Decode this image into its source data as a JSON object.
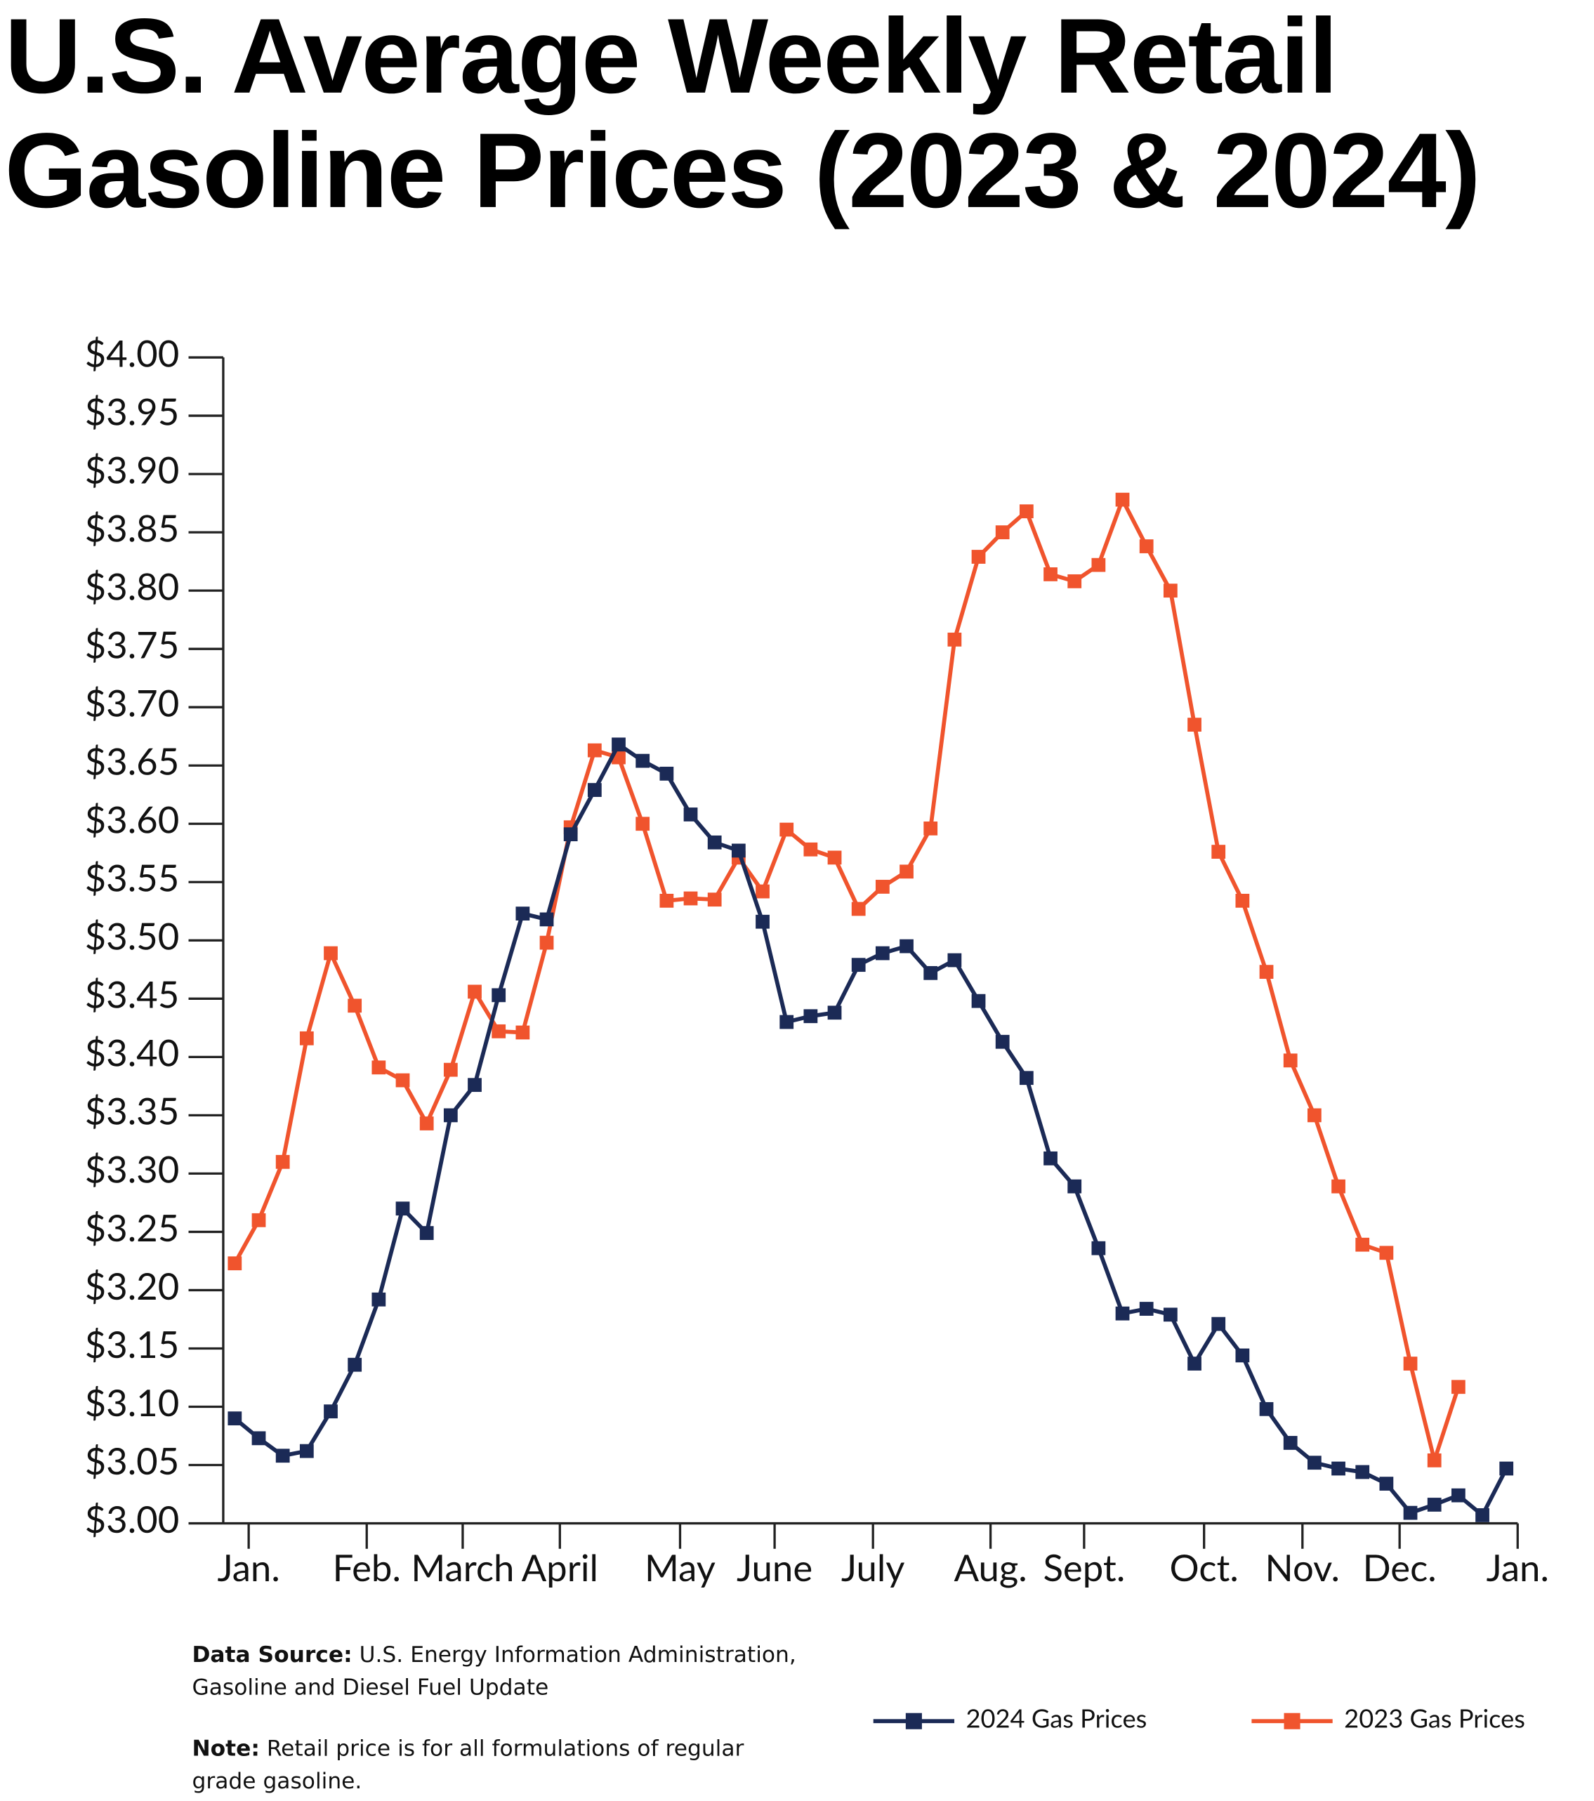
{
  "chart_data": {
    "type": "line",
    "title": "U.S. Average Weekly Retail Gasoline Prices (2023 & 2024)",
    "x": [
      0,
      1,
      2,
      3,
      4,
      5,
      6,
      7,
      8,
      9,
      10,
      11,
      12,
      13,
      14,
      15,
      16,
      17,
      18,
      19,
      20,
      21,
      22,
      23,
      24,
      25,
      26,
      27,
      28,
      29,
      30,
      31,
      32,
      33,
      34,
      35,
      36,
      37,
      38,
      39,
      40,
      41,
      42,
      43,
      44,
      45,
      46,
      47,
      48,
      49,
      50,
      51,
      52,
      53
    ],
    "xlim": [
      -0.48,
      53.47
    ],
    "xticks": [
      {
        "value": 0.58,
        "label": "Jan."
      },
      {
        "value": 5.5,
        "label": "Feb."
      },
      {
        "value": 9.5,
        "label": "March"
      },
      {
        "value": 13.55,
        "label": "April"
      },
      {
        "value": 18.56,
        "label": "May"
      },
      {
        "value": 22.5,
        "label": "June"
      },
      {
        "value": 26.6,
        "label": "July"
      },
      {
        "value": 31.5,
        "label": "Aug."
      },
      {
        "value": 35.4,
        "label": "Sept."
      },
      {
        "value": 40.4,
        "label": "Oct."
      },
      {
        "value": 44.5,
        "label": "Nov."
      },
      {
        "value": 48.55,
        "label": "Dec."
      },
      {
        "value": 53.47,
        "label": "Jan."
      }
    ],
    "ylim": [
      3.0,
      4.0
    ],
    "yticks": [
      {
        "value": 3.0,
        "label": "$3.00"
      },
      {
        "value": 3.05,
        "label": "$3.05"
      },
      {
        "value": 3.1,
        "label": "$3.10"
      },
      {
        "value": 3.15,
        "label": "$3.15"
      },
      {
        "value": 3.2,
        "label": "$3.20"
      },
      {
        "value": 3.25,
        "label": "$3.25"
      },
      {
        "value": 3.3,
        "label": "$3.30"
      },
      {
        "value": 3.35,
        "label": "$3.35"
      },
      {
        "value": 3.4,
        "label": "$3.40"
      },
      {
        "value": 3.45,
        "label": "$3.45"
      },
      {
        "value": 3.5,
        "label": "$3.50"
      },
      {
        "value": 3.55,
        "label": "$3.55"
      },
      {
        "value": 3.6,
        "label": "$3.60"
      },
      {
        "value": 3.65,
        "label": "$3.65"
      },
      {
        "value": 3.7,
        "label": "$3.70"
      },
      {
        "value": 3.75,
        "label": "$3.75"
      },
      {
        "value": 3.8,
        "label": "$3.80"
      },
      {
        "value": 3.85,
        "label": "$3.85"
      },
      {
        "value": 3.9,
        "label": "$3.90"
      },
      {
        "value": 3.95,
        "label": "$3.95"
      },
      {
        "value": 4.0,
        "label": "$4.00"
      }
    ],
    "grid": false,
    "series": [
      {
        "name": "2024 Gas Prices",
        "color": "#1b2a56",
        "values": [
          3.09,
          3.073,
          3.058,
          3.062,
          3.096,
          3.136,
          3.192,
          3.27,
          3.249,
          3.35,
          3.376,
          3.453,
          3.523,
          3.518,
          3.591,
          3.629,
          3.668,
          3.654,
          3.643,
          3.608,
          3.584,
          3.577,
          3.516,
          3.43,
          3.435,
          3.438,
          3.479,
          3.489,
          3.495,
          3.472,
          3.483,
          3.448,
          3.413,
          3.382,
          3.313,
          3.289,
          3.236,
          3.18,
          3.184,
          3.179,
          3.137,
          3.171,
          3.144,
          3.098,
          3.069,
          3.052,
          3.047,
          3.044,
          3.034,
          3.009,
          3.016,
          3.024,
          3.007,
          3.047
        ]
      },
      {
        "name": "2023 Gas Prices",
        "color": "#f0542d",
        "values": [
          3.223,
          3.26,
          3.31,
          3.416,
          3.489,
          3.444,
          3.391,
          3.38,
          3.343,
          3.389,
          3.456,
          3.422,
          3.421,
          3.498,
          3.597,
          3.663,
          3.657,
          3.6,
          3.534,
          3.536,
          3.535,
          3.571,
          3.542,
          3.595,
          3.578,
          3.571,
          3.527,
          3.546,
          3.559,
          3.596,
          3.758,
          3.829,
          3.85,
          3.868,
          3.814,
          3.808,
          3.822,
          3.878,
          3.838,
          3.8,
          3.685,
          3.576,
          3.534,
          3.473,
          3.397,
          3.35,
          3.289,
          3.239,
          3.232,
          3.137,
          3.054,
          3.117,
          null,
          null
        ]
      }
    ],
    "footnotes": {
      "source_label": "Data Source:",
      "source_text": "U.S. Energy Information Administration, Gasoline and Diesel Fuel Update",
      "note_label": "Note:",
      "note_text": "Retail price is for all formulations of regular grade gasoline."
    }
  }
}
